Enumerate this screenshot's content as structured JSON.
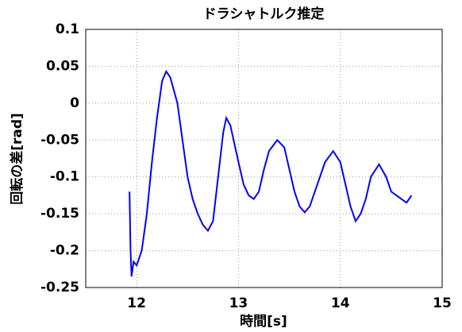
{
  "chart_data": {
    "type": "line",
    "title": "ドラシャトルク推定",
    "x_label": "時間[s]",
    "y_label": "回転の差[rad]",
    "x": [
      11.93,
      11.94,
      11.95,
      11.97,
      12.0,
      12.05,
      12.1,
      12.15,
      12.2,
      12.25,
      12.29,
      12.33,
      12.4,
      12.45,
      12.5,
      12.55,
      12.6,
      12.65,
      12.7,
      12.75,
      12.8,
      12.85,
      12.88,
      12.92,
      13.0,
      13.05,
      13.1,
      13.15,
      13.2,
      13.25,
      13.3,
      13.38,
      13.45,
      13.5,
      13.55,
      13.6,
      13.65,
      13.7,
      13.75,
      13.8,
      13.85,
      13.93,
      14.0,
      14.05,
      14.1,
      14.15,
      14.2,
      14.25,
      14.3,
      14.38,
      14.45,
      14.5,
      14.55,
      14.6,
      14.65,
      14.7
    ],
    "series": [
      {
        "name": "回転の差",
        "color": "#0000ff",
        "values": [
          -0.12,
          -0.2,
          -0.235,
          -0.215,
          -0.22,
          -0.2,
          -0.15,
          -0.08,
          -0.02,
          0.03,
          0.043,
          0.035,
          0.0,
          -0.05,
          -0.1,
          -0.13,
          -0.15,
          -0.165,
          -0.173,
          -0.16,
          -0.1,
          -0.04,
          -0.02,
          -0.03,
          -0.08,
          -0.11,
          -0.125,
          -0.13,
          -0.12,
          -0.09,
          -0.065,
          -0.05,
          -0.06,
          -0.09,
          -0.12,
          -0.14,
          -0.148,
          -0.14,
          -0.12,
          -0.1,
          -0.08,
          -0.065,
          -0.08,
          -0.11,
          -0.14,
          -0.16,
          -0.15,
          -0.13,
          -0.1,
          -0.083,
          -0.1,
          -0.12,
          -0.125,
          -0.13,
          -0.135,
          -0.125
        ]
      }
    ],
    "xlim": [
      11.5,
      15
    ],
    "xticks": [
      12,
      13,
      14,
      15
    ],
    "ylim": [
      -0.25,
      0.1
    ],
    "yticks": [
      -0.25,
      -0.2,
      -0.15,
      -0.1,
      -0.05,
      0,
      0.05,
      0.1
    ],
    "grid": true
  }
}
